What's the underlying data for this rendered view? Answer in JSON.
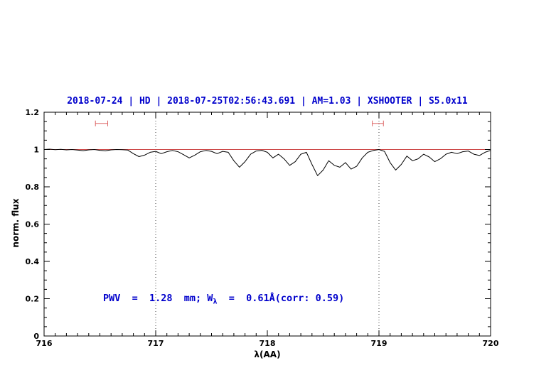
{
  "chart_data": {
    "type": "line",
    "title": "2018-07-24 | HD | 2018-07-25T02:56:43.691 | AM=1.03 | XSHOOTER | S5.0x11",
    "xlabel": "λ(AA)",
    "ylabel": "norm. flux",
    "xlim": [
      716,
      720
    ],
    "ylim": [
      0,
      1.2
    ],
    "xticks": [
      716,
      717,
      718,
      719,
      720
    ],
    "yticks": [
      0,
      0.2,
      0.4,
      0.6,
      0.8,
      1,
      1.2
    ],
    "x_minor_step": 0.1,
    "y_minor_step": 0.05,
    "grid": false,
    "legend": "none",
    "vlines": [
      717,
      719
    ],
    "continuum_y": 1.0,
    "colors": {
      "spectrum": "#000000",
      "continuum": "#cc4444",
      "marker": "#dd6666",
      "title": "#0000cc",
      "annotation": "#0000cc",
      "vline": "#444444"
    },
    "markers": [
      {
        "x1": 716.46,
        "x2": 716.57,
        "y": 1.14
      },
      {
        "x1": 718.94,
        "x2": 719.04,
        "y": 1.14
      }
    ],
    "annotation": {
      "prefix": "PWV  =  1.28  mm; W",
      "sub": "λ",
      "suffix": "  =  0.61Å(corr: 0.59)"
    },
    "series": {
      "name": "telluric-spectrum",
      "x_start": 716.0,
      "x_step": 0.05,
      "y": [
        1.0,
        1.002,
        0.999,
        1.001,
        0.998,
        1.0,
        0.997,
        0.994,
        0.998,
        1.0,
        0.996,
        0.993,
        0.998,
        1.0,
        0.999,
        0.997,
        0.978,
        0.962,
        0.97,
        0.985,
        0.99,
        0.978,
        0.988,
        0.995,
        0.988,
        0.972,
        0.955,
        0.97,
        0.988,
        0.995,
        0.99,
        0.978,
        0.99,
        0.985,
        0.94,
        0.905,
        0.935,
        0.975,
        0.992,
        0.996,
        0.985,
        0.955,
        0.975,
        0.95,
        0.915,
        0.935,
        0.975,
        0.985,
        0.92,
        0.86,
        0.89,
        0.94,
        0.915,
        0.905,
        0.93,
        0.895,
        0.91,
        0.955,
        0.985,
        0.995,
        1.0,
        0.99,
        0.93,
        0.89,
        0.92,
        0.965,
        0.94,
        0.95,
        0.975,
        0.96,
        0.935,
        0.95,
        0.975,
        0.985,
        0.978,
        0.988,
        0.992,
        0.975,
        0.968,
        0.985,
        0.995
      ]
    }
  }
}
